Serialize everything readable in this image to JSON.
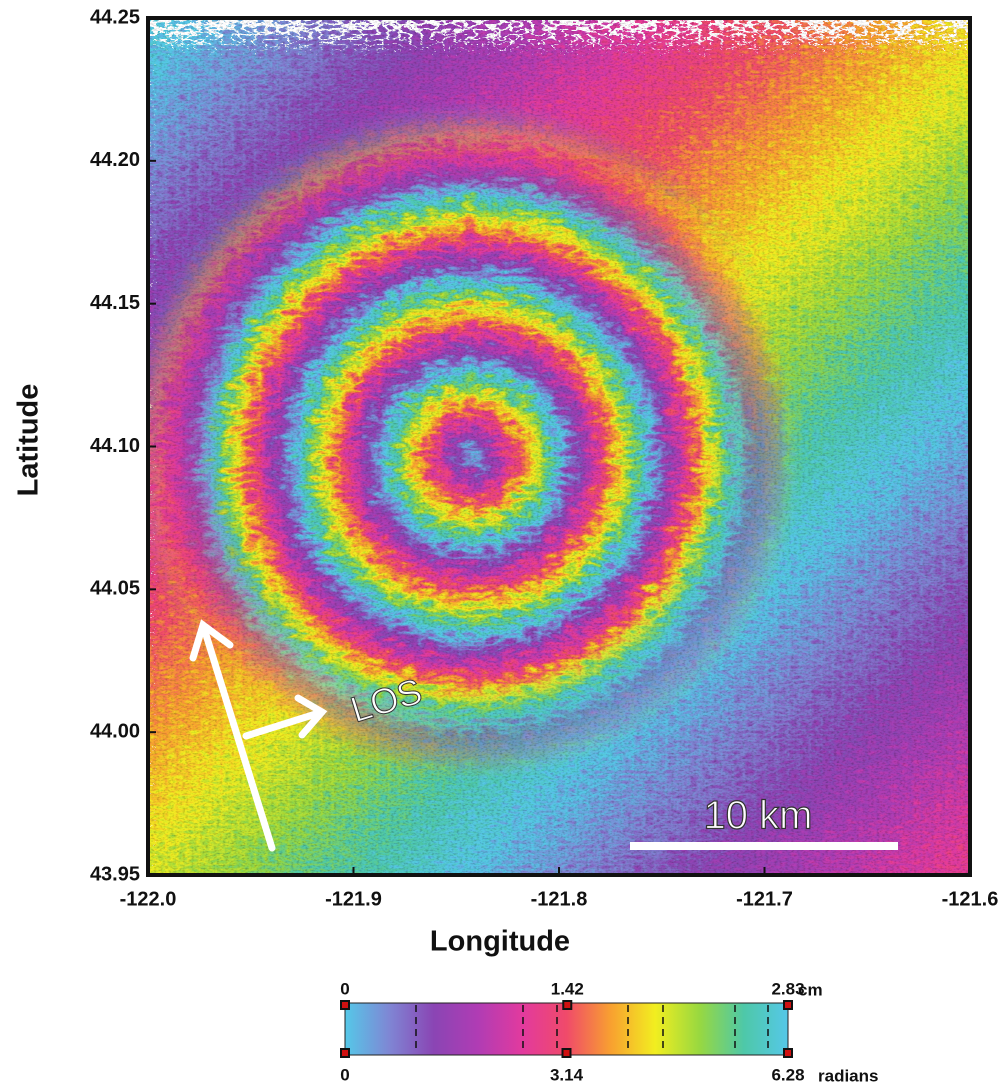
{
  "map": {
    "xlabel": "Longitude",
    "ylabel": "Latitude",
    "xlim": [
      -122.0,
      -121.6
    ],
    "ylim": [
      43.95,
      44.25
    ],
    "xticks": [
      {
        "value": -122.0,
        "label": "-122.0"
      },
      -121.9,
      -121.8,
      -121.7,
      -121.6
    ],
    "yticks": [
      44.25,
      {
        "value": 44.2,
        "label": "44.20"
      },
      44.15,
      {
        "value": 44.1,
        "label": "44.10"
      },
      44.05,
      {
        "value": 44.0,
        "label": "44.00"
      },
      43.95
    ],
    "scale_bar": "10 km",
    "arrow_label": "LOS"
  },
  "colorbar": {
    "colors": [
      "#55c8e8",
      "#7f86d4",
      "#8a45b4",
      "#b03cb4",
      "#e23a9e",
      "#f04a6a",
      "#f8a030",
      "#f2ee20",
      "#98d840",
      "#4ec8a8",
      "#55c8e8"
    ],
    "displacement_unit": "cm",
    "phase_unit": "radians",
    "displacement_lim": [
      0,
      2.83
    ],
    "phase_lim": [
      0,
      6.28
    ],
    "displacement_ticks": [
      0,
      1.42,
      2.83
    ],
    "phase_ticks": [
      0,
      3.14,
      6.28
    ]
  }
}
